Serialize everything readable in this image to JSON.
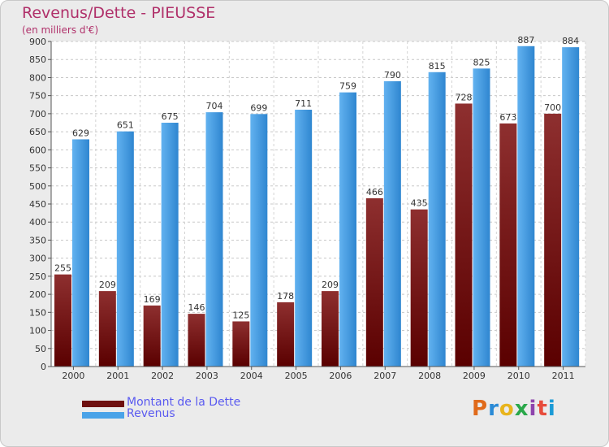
{
  "header": {
    "title": "Revenus/Dette - PIEUSSE",
    "subtitle": "(en milliers d'€)"
  },
  "legend": {
    "items": [
      {
        "label": "Montant de la Dette",
        "color": "#7a1a1a"
      },
      {
        "label": "Revenus",
        "color": "#4aa3e8"
      }
    ]
  },
  "logo": {
    "text": "Proxiti",
    "colors": [
      "#e06a1a",
      "#2a8ad6",
      "#e8b41c",
      "#2aa84a",
      "#8e44ad",
      "#e74c3c",
      "#1a9ad6"
    ]
  },
  "chart_data": {
    "type": "bar",
    "title": "Revenus/Dette - PIEUSSE",
    "ylabel": "(en milliers d'€)",
    "xlabel": "",
    "ylim": [
      0,
      900
    ],
    "ytick_step": 50,
    "grid": true,
    "legend_position": "bottom-left",
    "categories": [
      "2000",
      "2001",
      "2002",
      "2003",
      "2004",
      "2005",
      "2006",
      "2007",
      "2008",
      "2009",
      "2010",
      "2011"
    ],
    "series": [
      {
        "name": "Montant de la Dette",
        "color": "#7a1a1a",
        "values": [
          255,
          209,
          169,
          146,
          125,
          178,
          209,
          466,
          435,
          728,
          673,
          700
        ]
      },
      {
        "name": "Revenus",
        "color": "#4aa3e8",
        "values": [
          629,
          651,
          675,
          704,
          699,
          711,
          759,
          790,
          815,
          825,
          887,
          884
        ]
      }
    ]
  }
}
